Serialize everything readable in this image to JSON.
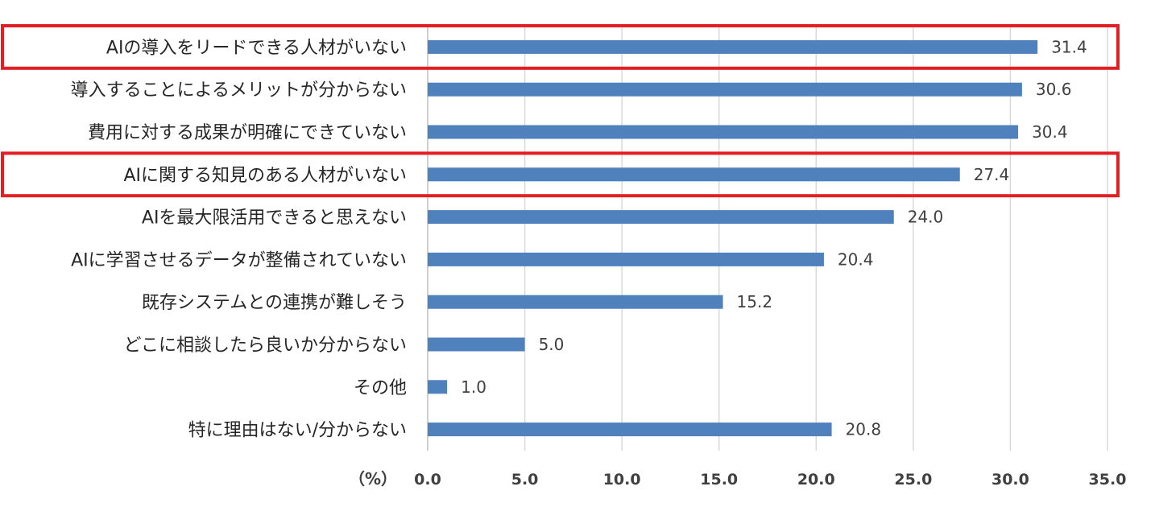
{
  "chart_data": {
    "type": "bar",
    "orientation": "horizontal",
    "categories": [
      "AIの導入をリードできる人材がいない",
      "導入することによるメリットが分からない",
      "費用に対する成果が明確にできていない",
      "AIに関する知見のある人材がいない",
      "AIを最大限活用できると思えない",
      "AIに学習させるデータが整備されていない",
      "既存システムとの連携が難しそう",
      "どこに相談したら良いか分からない",
      "その他",
      "特に理由はない/分からない"
    ],
    "values": [
      31.4,
      30.6,
      30.4,
      27.4,
      24.0,
      20.4,
      15.2,
      5.0,
      1.0,
      20.8
    ],
    "value_labels": [
      "31.4",
      "30.6",
      "30.4",
      "27.4",
      "24.0",
      "20.4",
      "15.2",
      "5.0",
      "1.0",
      "20.8"
    ],
    "xlim": [
      0,
      35
    ],
    "x_ticks": [
      "0.0",
      "5.0",
      "10.0",
      "15.0",
      "20.0",
      "25.0",
      "30.0",
      "35.0"
    ],
    "unit_label": "（%）",
    "grid": true,
    "bar_color": "#4f81bd",
    "highlight_color": "#e31e24",
    "highlighted_categories": [
      0,
      3
    ]
  }
}
